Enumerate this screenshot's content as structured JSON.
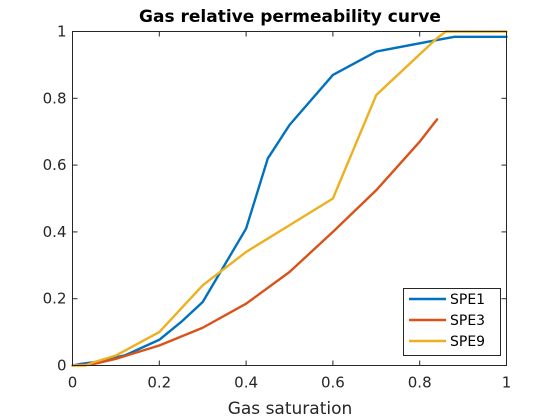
{
  "chart_data": {
    "type": "line",
    "title": "Gas relative permeability curve",
    "xlabel": "Gas saturation",
    "ylabel": "",
    "xlim": [
      0,
      1
    ],
    "ylim": [
      0,
      1
    ],
    "xticks": [
      0,
      0.2,
      0.4,
      0.6,
      0.8,
      1
    ],
    "xtick_labels": [
      "0",
      "0.2",
      "0.4",
      "0.6",
      "0.8",
      "1"
    ],
    "yticks": [
      0,
      0.2,
      0.4,
      0.6,
      0.8,
      1
    ],
    "ytick_labels": [
      "0",
      "0.2",
      "0.4",
      "0.6",
      "0.8",
      "1"
    ],
    "grid": false,
    "legend_position": "bottom-right",
    "series": [
      {
        "name": "SPE1",
        "color": "#0072BD",
        "x": [
          0,
          0.02,
          0.05,
          0.12,
          0.2,
          0.25,
          0.3,
          0.4,
          0.45,
          0.5,
          0.6,
          0.7,
          0.85,
          0.88,
          1
        ],
        "y": [
          0,
          0.005,
          0.01,
          0.03,
          0.077,
          0.13,
          0.19,
          0.41,
          0.62,
          0.72,
          0.87,
          0.94,
          0.977,
          0.984,
          0.984
        ]
      },
      {
        "name": "SPE3",
        "color": "#D95319",
        "x": [
          0,
          0.05,
          0.1,
          0.2,
          0.3,
          0.4,
          0.5,
          0.6,
          0.7,
          0.8,
          0.84
        ],
        "y": [
          0,
          0.005,
          0.02,
          0.06,
          0.113,
          0.185,
          0.28,
          0.4,
          0.525,
          0.67,
          0.737
        ]
      },
      {
        "name": "SPE9",
        "color": "#EDB120",
        "x": [
          0,
          0.03,
          0.05,
          0.1,
          0.2,
          0.3,
          0.4,
          0.5,
          0.6,
          0.7,
          0.84,
          0.86,
          1
        ],
        "y": [
          0,
          0,
          0.01,
          0.03,
          0.1,
          0.24,
          0.34,
          0.42,
          0.5,
          0.81,
          0.98,
          1,
          1
        ]
      }
    ]
  }
}
